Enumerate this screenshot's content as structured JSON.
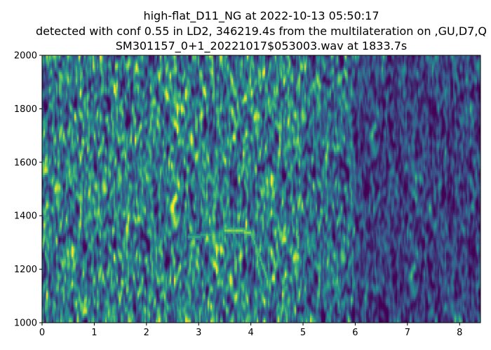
{
  "chart_data": {
    "type": "heatmap",
    "title_lines": [
      "high-flat_D11_NG at 2022-10-13 05:50:17",
      "detected with conf 0.55 in LD2, 346219.4s from the multilateration on ,GU,D7,Q",
      "SM301157_0+1_20221017$053003.wav at 1833.7s"
    ],
    "xlabel": "",
    "ylabel": "",
    "xlim": [
      0,
      8.4
    ],
    "ylim": [
      1000,
      2000
    ],
    "xticks": [
      "0",
      "1",
      "2",
      "3",
      "4",
      "5",
      "6",
      "7",
      "8"
    ],
    "yticks": [
      "1000",
      "1200",
      "1400",
      "1600",
      "1800",
      "2000"
    ],
    "colormap": "viridis",
    "colors": {
      "low": "#440154",
      "high": "#fde725"
    },
    "grid": false,
    "features": [
      {
        "x": [
          2.8,
          3.3
        ],
        "y": [
          1320,
          1335
        ],
        "intensity": 0.6
      },
      {
        "x": [
          3.5,
          4.0
        ],
        "y": [
          1350,
          1340
        ],
        "intensity": 0.85
      },
      {
        "x": [
          4.0,
          4.3
        ],
        "y": [
          1340,
          1170
        ],
        "intensity": 0.7
      },
      {
        "x": [
          4.9,
          4.9
        ],
        "y": [
          1320,
          1280
        ],
        "intensity": 0.75
      },
      {
        "x": [
          5.0,
          5.05
        ],
        "y": [
          1250,
          1060
        ],
        "intensity": 0.5
      },
      {
        "x": [
          5.6,
          5.7
        ],
        "y": [
          1180,
          1040
        ],
        "intensity": 0.5
      }
    ]
  }
}
